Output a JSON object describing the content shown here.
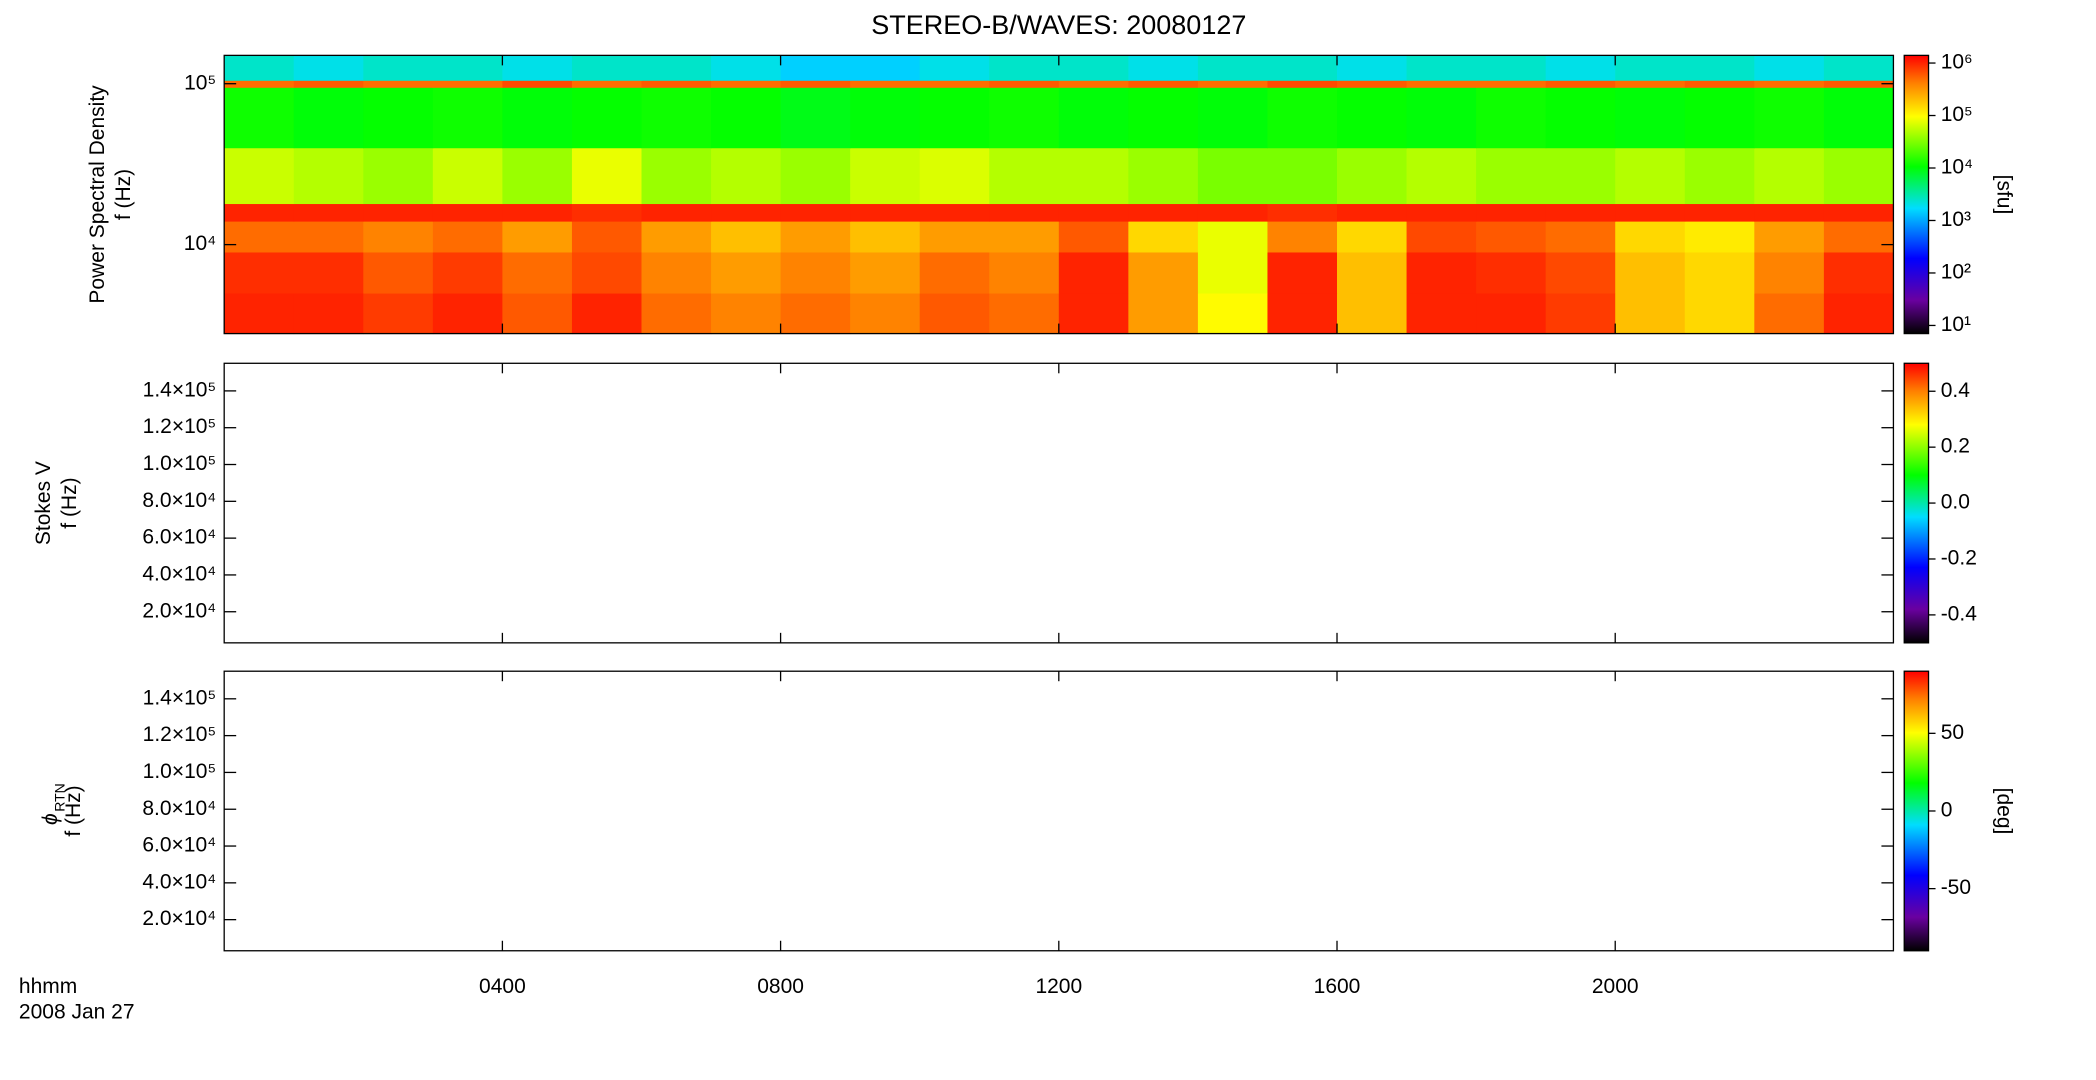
{
  "chart_data": [
    {
      "type": "heatmap",
      "title": "STEREO-B/WAVES: 20080127",
      "ylabel": [
        "Power Spectral Density",
        "f (Hz)"
      ],
      "yscale": "log",
      "xlim": [
        0,
        24
      ],
      "xticks": [
        4,
        8,
        12,
        16,
        20
      ],
      "ylim": [
        2800,
        150000
      ],
      "yticks": [
        {
          "value": 10000,
          "label": "10⁴"
        },
        {
          "value": 100000,
          "label": "10⁵"
        }
      ],
      "x_edges": [
        0,
        1,
        2,
        3,
        4,
        5,
        6,
        7,
        8,
        9,
        10,
        11,
        12,
        13,
        14,
        15,
        16,
        17,
        18,
        19,
        20,
        21,
        22,
        23,
        24
      ],
      "y_edges": [
        2800,
        5000,
        9000,
        14000,
        18000,
        40000,
        95000,
        105000,
        150000
      ],
      "values": [
        [
          1000000,
          1000000,
          800000,
          1000000,
          600000,
          1000000,
          500000,
          400000,
          500000,
          400000,
          600000,
          500000,
          1000000,
          300000,
          100000,
          1000000,
          200000,
          1000000,
          1000000,
          800000,
          200000,
          150000,
          500000,
          1000000
        ],
        [
          900000,
          900000,
          600000,
          800000,
          500000,
          700000,
          400000,
          300000,
          400000,
          300000,
          500000,
          400000,
          1000000,
          300000,
          80000,
          1000000,
          200000,
          1000000,
          900000,
          700000,
          200000,
          150000,
          400000,
          900000
        ],
        [
          500000,
          500000,
          400000,
          500000,
          300000,
          600000,
          300000,
          200000,
          300000,
          200000,
          300000,
          300000,
          600000,
          150000,
          80000,
          400000,
          150000,
          700000,
          600000,
          500000,
          150000,
          120000,
          300000,
          500000
        ],
        [
          1000000,
          1000000,
          1000000,
          1000000,
          1000000,
          900000,
          1000000,
          1000000,
          1000000,
          1000000,
          1000000,
          1000000,
          1000000,
          1000000,
          1000000,
          900000,
          1000000,
          1000000,
          1000000,
          1000000,
          1000000,
          1000000,
          1000000,
          1000000
        ],
        [
          60000,
          50000,
          40000,
          60000,
          40000,
          80000,
          40000,
          50000,
          40000,
          60000,
          70000,
          50000,
          50000,
          40000,
          30000,
          30000,
          40000,
          50000,
          40000,
          40000,
          50000,
          40000,
          50000,
          40000
        ],
        [
          12000,
          10000,
          11000,
          12000,
          10000,
          11000,
          12000,
          11000,
          9000,
          10000,
          11000,
          12000,
          10000,
          11000,
          10000,
          12000,
          11000,
          10000,
          12000,
          11000,
          10000,
          11000,
          12000,
          10000
        ],
        [
          500000,
          600000,
          500000,
          500000,
          700000,
          500000,
          600000,
          500000,
          600000,
          500000,
          500000,
          600000,
          500000,
          600000,
          500000,
          700000,
          600000,
          500000,
          500000,
          600000,
          500000,
          600000,
          500000,
          600000
        ],
        [
          2500,
          2000,
          2500,
          2500,
          2000,
          2500,
          2500,
          2000,
          1500,
          1500,
          2000,
          2500,
          2500,
          2000,
          2500,
          2500,
          2000,
          2500,
          2500,
          2000,
          2500,
          2500,
          2000,
          2500
        ]
      ],
      "colorbar": {
        "scale": "log",
        "lim": [
          7,
          1400000
        ],
        "ticks": [
          {
            "value": 10,
            "label": "10¹"
          },
          {
            "value": 100,
            "label": "10²"
          },
          {
            "value": 1000,
            "label": "10³"
          },
          {
            "value": 10000,
            "label": "10⁴"
          },
          {
            "value": 100000,
            "label": "10⁵"
          },
          {
            "value": 1000000,
            "label": "10⁶"
          }
        ],
        "label": "[sfu]"
      }
    },
    {
      "type": "heatmap",
      "ylabel": [
        "Stokes V",
        "f (Hz)"
      ],
      "yscale": "linear",
      "xlim": [
        0,
        24
      ],
      "xticks": [
        4,
        8,
        12,
        16,
        20
      ],
      "ylim": [
        3100,
        155000
      ],
      "yticks": [
        {
          "value": 20000,
          "label": "2.0×10⁴"
        },
        {
          "value": 40000,
          "label": "4.0×10⁴"
        },
        {
          "value": 60000,
          "label": "6.0×10⁴"
        },
        {
          "value": 80000,
          "label": "8.0×10⁴"
        },
        {
          "value": 100000,
          "label": "1.0×10⁵"
        },
        {
          "value": 120000,
          "label": "1.2×10⁵"
        },
        {
          "value": 140000,
          "label": "1.4×10⁵"
        }
      ],
      "colorbar": {
        "scale": "linear",
        "lim": [
          -0.5,
          0.5
        ],
        "ticks": [
          -0.4,
          -0.2,
          {
            "value": 0,
            "label": "0.0"
          },
          0.2,
          0.4
        ]
      }
    },
    {
      "type": "heatmap",
      "ylabel": [
        "f (Hz)"
      ],
      "ylabel_symbol": "ϕ",
      "ylabel_subscript": "RTN",
      "yscale": "linear",
      "xlim": [
        0,
        24
      ],
      "xticks": [
        {
          "value": 4,
          "label": "0400"
        },
        {
          "value": 8,
          "label": "0800"
        },
        {
          "value": 12,
          "label": "1200"
        },
        {
          "value": 16,
          "label": "1600"
        },
        {
          "value": 20,
          "label": "2000"
        }
      ],
      "x_label": "hhmm",
      "x_sublabel": "2008 Jan 27",
      "ylim": [
        3100,
        155000
      ],
      "yticks": [
        {
          "value": 20000,
          "label": "2.0×10⁴"
        },
        {
          "value": 40000,
          "label": "4.0×10⁴"
        },
        {
          "value": 60000,
          "label": "6.0×10⁴"
        },
        {
          "value": 80000,
          "label": "8.0×10⁴"
        },
        {
          "value": 100000,
          "label": "1.0×10⁵"
        },
        {
          "value": 120000,
          "label": "1.2×10⁵"
        },
        {
          "value": 140000,
          "label": "1.4×10⁵"
        }
      ],
      "colorbar": {
        "scale": "linear",
        "lim": [
          -90,
          90
        ],
        "ticks": [
          -50,
          0,
          50
        ],
        "label": "[deg]"
      }
    }
  ]
}
